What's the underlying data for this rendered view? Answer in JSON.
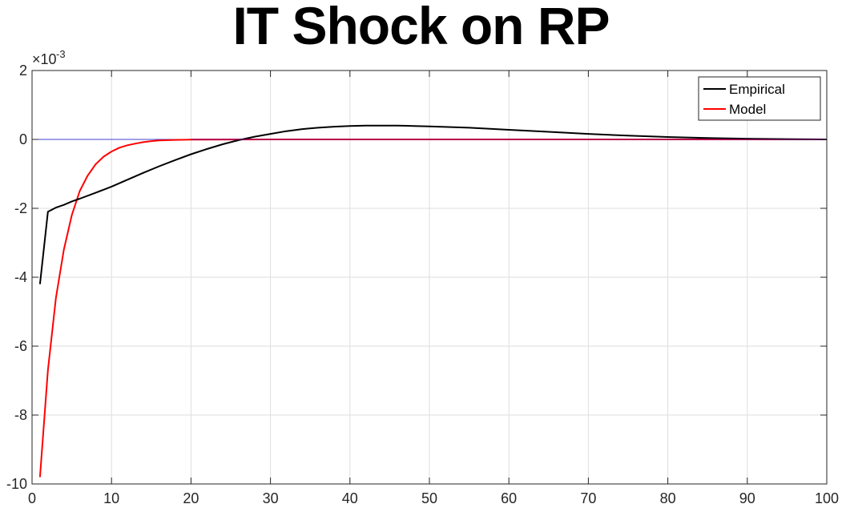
{
  "chart_data": {
    "type": "line",
    "title": "IT Shock on RP",
    "xlabel": "",
    "ylabel": "",
    "xlim": [
      0,
      100
    ],
    "ylim": [
      -0.01,
      0.002
    ],
    "x_ticks": [
      0,
      10,
      20,
      30,
      40,
      50,
      60,
      70,
      80,
      90,
      100
    ],
    "y_ticks": [
      -0.01,
      -0.008,
      -0.006,
      -0.004,
      -0.002,
      0,
      0.002
    ],
    "y_tick_labels": [
      "-10",
      "-8",
      "-6",
      "-4",
      "-2",
      "0",
      "2"
    ],
    "y_exponent_base": "×10",
    "y_exponent_power": "-3",
    "grid": true,
    "legend": "top-right",
    "series": [
      {
        "name": "Empirical",
        "color": "#000000",
        "x": [
          1,
          2,
          3,
          4,
          5,
          6,
          8,
          10,
          12,
          14,
          16,
          18,
          20,
          22,
          24,
          26,
          28,
          30,
          32,
          34,
          36,
          38,
          40,
          42,
          44,
          46,
          48,
          50,
          55,
          60,
          65,
          70,
          75,
          80,
          85,
          90,
          95,
          100
        ],
        "y": [
          -0.0042,
          -0.0021,
          -0.00198,
          -0.0019,
          -0.0018,
          -0.00172,
          -0.00155,
          -0.00137,
          -0.00117,
          -0.00097,
          -0.00078,
          -0.0006,
          -0.00043,
          -0.00028,
          -0.00014,
          -2e-05,
          8e-05,
          0.00016,
          0.00024,
          0.0003,
          0.00034,
          0.00037,
          0.00039,
          0.0004,
          0.0004,
          0.0004,
          0.00039,
          0.00038,
          0.00034,
          0.00028,
          0.00022,
          0.00016,
          0.00011,
          7e-05,
          4e-05,
          2e-05,
          1e-05,
          0.0
        ]
      },
      {
        "name": "Model",
        "color": "#ff0000",
        "x": [
          1,
          2,
          3,
          4,
          5,
          6,
          7,
          8,
          9,
          10,
          11,
          12,
          13,
          14,
          15,
          16,
          18,
          20,
          25,
          30,
          40,
          50,
          60,
          70,
          80,
          90,
          100
        ],
        "y": [
          -0.0098,
          -0.0067,
          -0.0046,
          -0.0032,
          -0.0022,
          -0.0015,
          -0.00105,
          -0.00072,
          -0.0005,
          -0.00035,
          -0.00024,
          -0.00017,
          -0.00012,
          -8e-05,
          -5e-05,
          -3e-05,
          -1.5e-05,
          -7e-06,
          -2e-06,
          0,
          0,
          0,
          0,
          0,
          0,
          0,
          0
        ]
      },
      {
        "name": "",
        "color": "#4040d0",
        "x": [
          0,
          100
        ],
        "y": [
          0,
          0
        ]
      }
    ]
  }
}
